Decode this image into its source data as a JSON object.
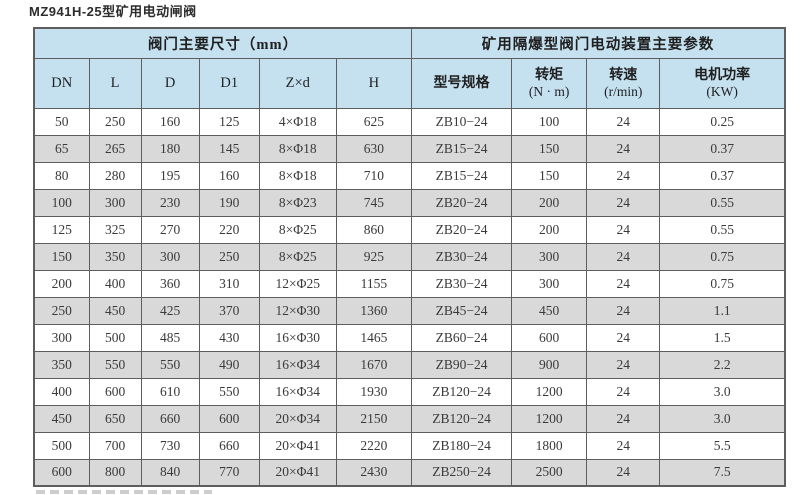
{
  "page_title": "MZ941H-25型矿用电动闸阀",
  "colors": {
    "header_bg": "#c5e1f0",
    "alt_row_bg": "#d9d9d9",
    "border": "#5e5e5e",
    "text": "#3a3a3a"
  },
  "table": {
    "group_headers": [
      {
        "label": "阀门主要尺寸（mm）",
        "colspan": 6
      },
      {
        "label": "矿用隔爆型阀门电动装置主要参数",
        "colspan": 4
      }
    ],
    "columns": [
      {
        "label": "DN"
      },
      {
        "label": "L"
      },
      {
        "label": "D"
      },
      {
        "label": "D1"
      },
      {
        "label": "Z×d"
      },
      {
        "label": "H"
      },
      {
        "label": "型号规格"
      },
      {
        "label": "转矩",
        "sub": "(N · m)"
      },
      {
        "label": "转速",
        "sub": "(r/min)"
      },
      {
        "label": "电机功率",
        "sub": "(KW)"
      }
    ],
    "rows": [
      [
        "50",
        "250",
        "160",
        "125",
        "4×Φ18",
        "625",
        "ZB10−24",
        "100",
        "24",
        "0.25"
      ],
      [
        "65",
        "265",
        "180",
        "145",
        "8×Φ18",
        "630",
        "ZB15−24",
        "150",
        "24",
        "0.37"
      ],
      [
        "80",
        "280",
        "195",
        "160",
        "8×Φ18",
        "710",
        "ZB15−24",
        "150",
        "24",
        "0.37"
      ],
      [
        "100",
        "300",
        "230",
        "190",
        "8×Φ23",
        "745",
        "ZB20−24",
        "200",
        "24",
        "0.55"
      ],
      [
        "125",
        "325",
        "270",
        "220",
        "8×Φ25",
        "860",
        "ZB20−24",
        "200",
        "24",
        "0.55"
      ],
      [
        "150",
        "350",
        "300",
        "250",
        "8×Φ25",
        "925",
        "ZB30−24",
        "300",
        "24",
        "0.75"
      ],
      [
        "200",
        "400",
        "360",
        "310",
        "12×Φ25",
        "1155",
        "ZB30−24",
        "300",
        "24",
        "0.75"
      ],
      [
        "250",
        "450",
        "425",
        "370",
        "12×Φ30",
        "1360",
        "ZB45−24",
        "450",
        "24",
        "1.1"
      ],
      [
        "300",
        "500",
        "485",
        "430",
        "16×Φ30",
        "1465",
        "ZB60−24",
        "600",
        "24",
        "1.5"
      ],
      [
        "350",
        "550",
        "550",
        "490",
        "16×Φ34",
        "1670",
        "ZB90−24",
        "900",
        "24",
        "2.2"
      ],
      [
        "400",
        "600",
        "610",
        "550",
        "16×Φ34",
        "1930",
        "ZB120−24",
        "1200",
        "24",
        "3.0"
      ],
      [
        "450",
        "650",
        "660",
        "600",
        "20×Φ34",
        "2150",
        "ZB120−24",
        "1200",
        "24",
        "3.0"
      ],
      [
        "500",
        "700",
        "730",
        "660",
        "20×Φ41",
        "2220",
        "ZB180−24",
        "1800",
        "24",
        "5.5"
      ],
      [
        "600",
        "800",
        "840",
        "770",
        "20×Φ41",
        "2430",
        "ZB250−24",
        "2500",
        "24",
        "7.5"
      ]
    ]
  }
}
